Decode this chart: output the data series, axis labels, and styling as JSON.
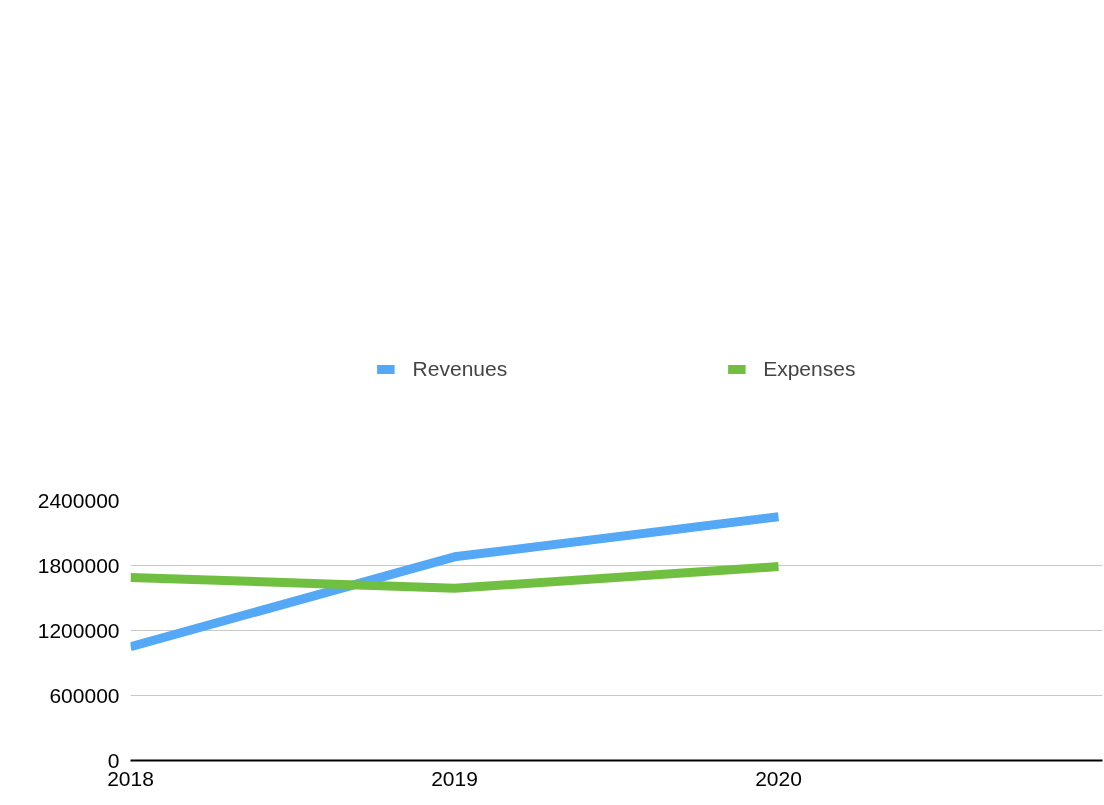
{
  "chart_data": {
    "type": "line",
    "x": [
      2018,
      2019,
      2020
    ],
    "xlim": [
      2018,
      2021
    ],
    "xticks": [
      2018,
      2019,
      2020
    ],
    "ylim": [
      0,
      2400000
    ],
    "yticks": [
      0,
      600000,
      1200000,
      1800000,
      2400000
    ],
    "grid": "y",
    "legend": "top",
    "marker": "none",
    "line_style": "solid",
    "series": [
      {
        "name": "Revenues",
        "color": "#54a8f5",
        "values": [
          1050000,
          1880000,
          2250000
        ]
      },
      {
        "name": "Expenses",
        "color": "#70bf41",
        "values": [
          1690000,
          1590000,
          1790000
        ]
      }
    ]
  }
}
